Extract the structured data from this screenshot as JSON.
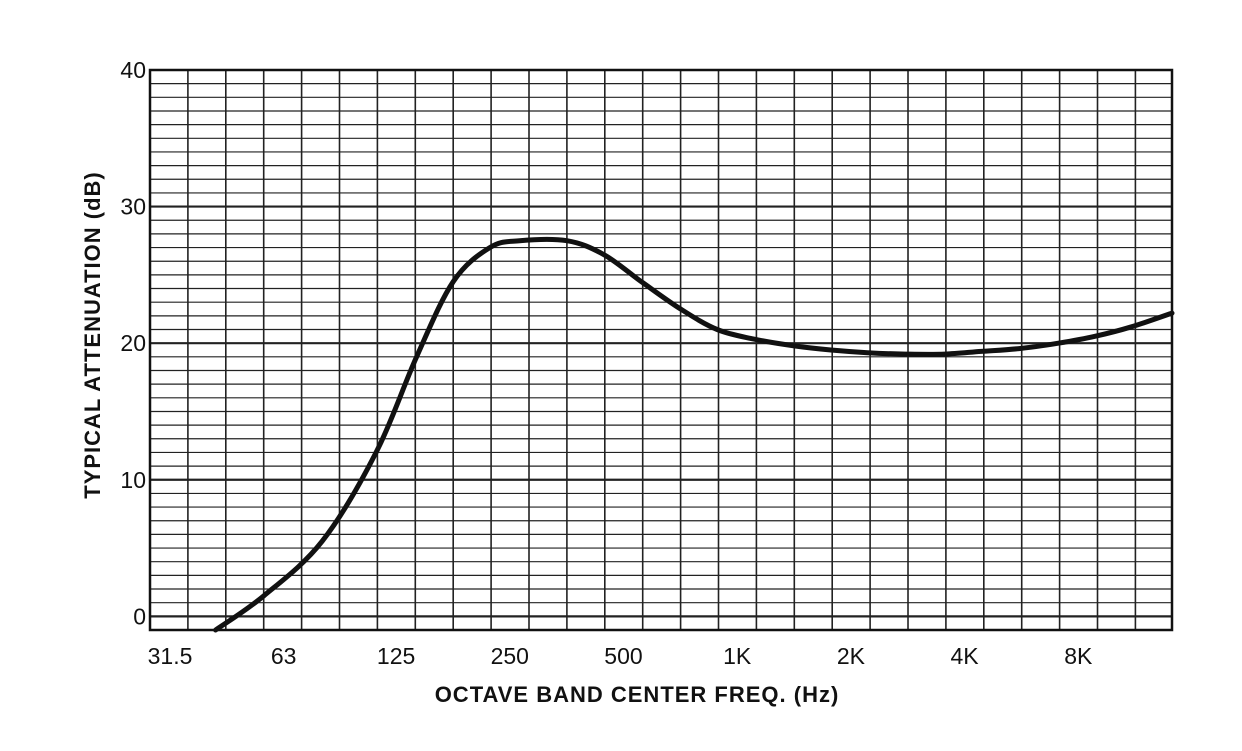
{
  "chart_data": {
    "type": "line",
    "title": "",
    "xlabel": "OCTAVE BAND CENTER FREQ. (Hz)",
    "ylabel": "TYPICAL ATTENUATION (dB)",
    "x_scale": "log2",
    "x_tick_values": [
      31.5,
      63,
      125,
      250,
      500,
      1000,
      2000,
      4000,
      8000
    ],
    "x_tick_labels": [
      "31.5",
      "63",
      "125",
      "250",
      "500",
      "1K",
      "2K",
      "4K",
      "8K"
    ],
    "xlim": [
      31.5,
      16000
    ],
    "y_tick_values": [
      0,
      10,
      20,
      30,
      40
    ],
    "y_tick_labels": [
      "0",
      "10",
      "20",
      "30",
      "40"
    ],
    "ylim": [
      -1,
      40
    ],
    "grid": true,
    "legend": "none",
    "line_color": "#111111",
    "grid_color": "#222222",
    "series": [
      {
        "x": [
          47,
          63,
          90,
          125,
          160,
          200,
          250,
          300,
          400,
          500,
          630,
          800,
          1000,
          1250,
          1600,
          2000,
          2500,
          3150,
          4000,
          5000,
          6300,
          8000,
          10000,
          12500,
          16000
        ],
        "y": [
          -1,
          1.5,
          5.5,
          12,
          19,
          24.5,
          27,
          27.5,
          27.5,
          26.5,
          24.5,
          22.5,
          21,
          20.3,
          19.8,
          19.5,
          19.3,
          19.2,
          19.2,
          19.4,
          19.6,
          20,
          20.5,
          21.2,
          22.2
        ]
      }
    ]
  }
}
